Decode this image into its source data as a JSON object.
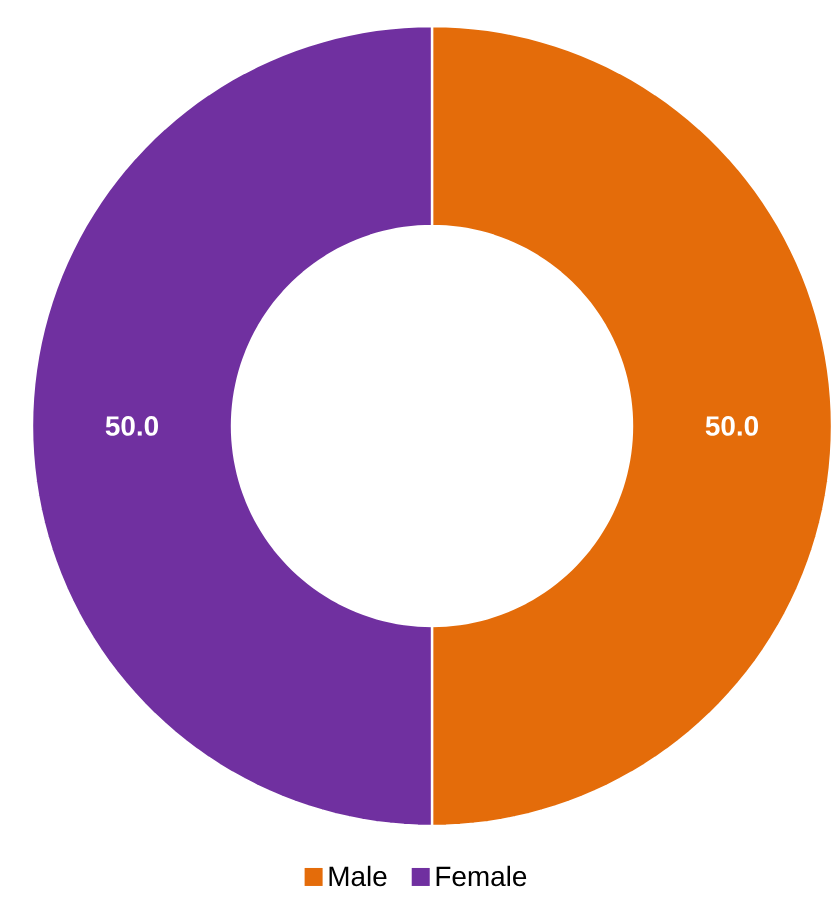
{
  "chart_data": {
    "type": "donut",
    "categories": [
      "Male",
      "Female"
    ],
    "values": [
      50,
      50
    ],
    "colors": [
      "#e46c0a",
      "#7030a0"
    ],
    "value_labels": [
      "50.0",
      "50.0"
    ],
    "legend": "bottom"
  }
}
